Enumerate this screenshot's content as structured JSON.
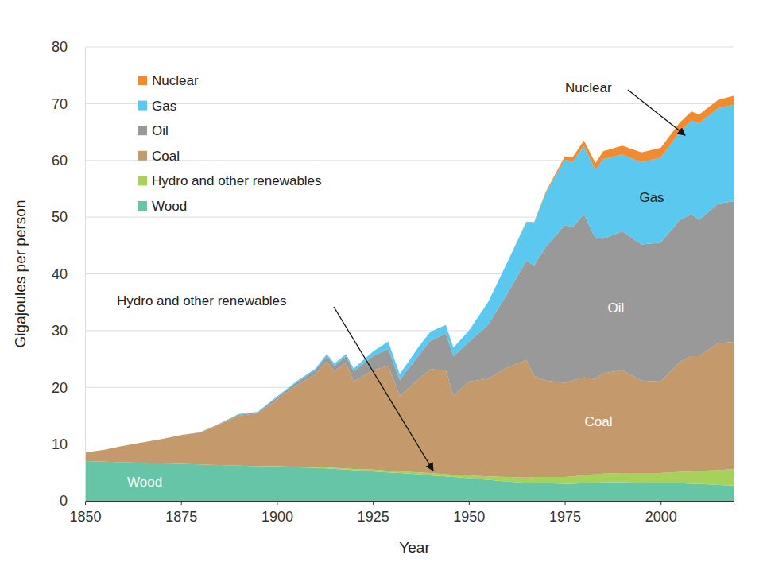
{
  "chart_data": {
    "type": "area",
    "stacked": true,
    "x": [
      1850,
      1855,
      1860,
      1865,
      1870,
      1875,
      1880,
      1885,
      1890,
      1895,
      1900,
      1905,
      1910,
      1913,
      1915,
      1918,
      1920,
      1925,
      1929,
      1932,
      1937,
      1940,
      1944,
      1946,
      1950,
      1955,
      1960,
      1965,
      1967,
      1970,
      1975,
      1977,
      1980,
      1983,
      1985,
      1990,
      1995,
      2000,
      2005,
      2008,
      2010,
      2015,
      2019
    ],
    "series": [
      {
        "name": "Nuclear",
        "color": "#f28a30",
        "values": [
          0,
          0,
          0,
          0,
          0,
          0,
          0,
          0,
          0,
          0,
          0,
          0,
          0,
          0,
          0,
          0,
          0,
          0,
          0,
          0,
          0,
          0,
          0,
          0,
          0,
          0,
          0,
          0.1,
          0.1,
          0.2,
          0.6,
          0.8,
          1.0,
          1.2,
          1.4,
          1.6,
          1.7,
          1.7,
          1.7,
          1.6,
          1.6,
          1.5,
          1.6
        ]
      },
      {
        "name": "Gas",
        "color": "#5bc8f0",
        "values": [
          0,
          0,
          0,
          0,
          0,
          0,
          0,
          0,
          0.1,
          0.1,
          0.2,
          0.2,
          0.3,
          0.4,
          0.4,
          0.4,
          0.5,
          0.8,
          1.3,
          1.0,
          1.5,
          1.6,
          1.5,
          1.5,
          2.0,
          4.0,
          5.5,
          6.8,
          7.5,
          9.5,
          11.5,
          11.5,
          12.0,
          12.0,
          14.0,
          13.5,
          14.5,
          15.0,
          15.5,
          16.5,
          17.0,
          16.8,
          17.0
        ]
      },
      {
        "name": "Oil",
        "color": "#999999",
        "values": [
          0,
          0,
          0,
          0,
          0,
          0,
          0.1,
          0.1,
          0.2,
          0.2,
          0.4,
          0.5,
          0.7,
          0.9,
          1.0,
          1.2,
          1.8,
          2.5,
          3.0,
          2.8,
          4.2,
          5.0,
          6.5,
          7.0,
          7.0,
          9.5,
          13.0,
          17.5,
          19.5,
          23.5,
          27.8,
          27.0,
          28.7,
          24.8,
          23.7,
          24.5,
          24.0,
          24.5,
          25.0,
          25.0,
          24.0,
          24.6,
          24.8
        ]
      },
      {
        "name": "Coal",
        "color": "#c49a6c",
        "values": [
          1.5,
          2.1,
          2.9,
          3.6,
          4.3,
          5.1,
          5.6,
          7.2,
          8.8,
          9.3,
          11.7,
          14.3,
          16.4,
          18.7,
          17.0,
          18.6,
          15.4,
          17.5,
          18.5,
          13.3,
          16.5,
          18.3,
          18.3,
          13.9,
          16.5,
          17.2,
          19.3,
          20.7,
          17.8,
          17.0,
          16.6,
          16.9,
          17.3,
          16.8,
          17.7,
          18.1,
          16.3,
          16.1,
          19.4,
          20.4,
          20.2,
          22.4,
          22.4
        ]
      },
      {
        "name": "Hydro and other renewables",
        "color": "#a6d15a",
        "values": [
          0,
          0,
          0,
          0,
          0,
          0,
          0,
          0,
          0,
          0,
          0.1,
          0.1,
          0.1,
          0.2,
          0.2,
          0.2,
          0.2,
          0.3,
          0.3,
          0.3,
          0.3,
          0.4,
          0.4,
          0.4,
          0.5,
          0.6,
          0.8,
          0.9,
          1.0,
          1.1,
          1.2,
          1.3,
          1.4,
          1.5,
          1.5,
          1.6,
          1.7,
          1.8,
          2.0,
          2.1,
          2.3,
          2.6,
          2.9
        ]
      },
      {
        "name": "Wood",
        "color": "#66c5a7",
        "values": [
          7.0,
          6.9,
          6.8,
          6.7,
          6.6,
          6.5,
          6.4,
          6.3,
          6.2,
          6.1,
          6.0,
          5.9,
          5.8,
          5.7,
          5.6,
          5.5,
          5.4,
          5.2,
          5.0,
          4.9,
          4.7,
          4.5,
          4.3,
          4.2,
          4.0,
          3.7,
          3.4,
          3.2,
          3.2,
          3.1,
          3.0,
          3.0,
          3.1,
          3.2,
          3.3,
          3.3,
          3.2,
          3.1,
          3.1,
          3.0,
          3.0,
          2.8,
          2.7
        ]
      }
    ],
    "xlim": [
      1850,
      2019
    ],
    "ylim": [
      0,
      80
    ],
    "xticks": [
      1850,
      1875,
      1900,
      1925,
      1950,
      1975,
      2000
    ],
    "yticks": [
      0,
      10,
      20,
      30,
      40,
      50,
      60,
      70,
      80
    ],
    "x_label": "Year",
    "y_label": "Gigajoules per person",
    "grid": true,
    "legend": "upper left",
    "annotations": [
      "Nuclear",
      "Gas",
      "Oil",
      "Coal",
      "Hydro and other renewables",
      "Wood"
    ]
  }
}
